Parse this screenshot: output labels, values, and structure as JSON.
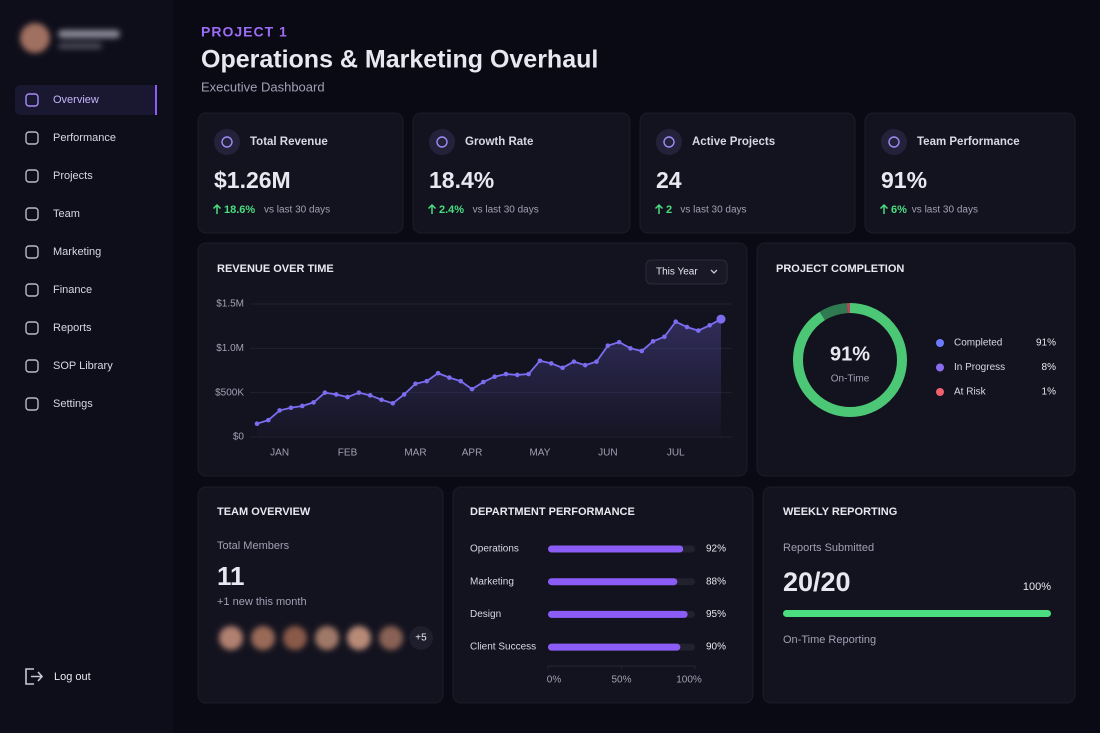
{
  "sidebar": {
    "nav": [
      "Overview",
      "Performance",
      "Projects",
      "Team",
      "Marketing",
      "Finance",
      "Reports",
      "SOP Library",
      "Settings"
    ],
    "active": 0,
    "logout": "Log out"
  },
  "header": {
    "project": "PROJECT 1",
    "title": "Operations & Marketing Overhaul",
    "subtitle": "Executive Dashboard"
  },
  "kpis": [
    {
      "label": "Total Revenue",
      "value": "$1.26M",
      "delta": "18.6%",
      "note": "vs last 30 days"
    },
    {
      "label": "Growth Rate",
      "value": "18.4%",
      "delta": "2.4%",
      "note": "vs last 30 days"
    },
    {
      "label": "Active Projects",
      "value": "24",
      "delta": "2",
      "note": "vs last 30 days"
    },
    {
      "label": "Team Performance",
      "value": "91%",
      "delta": "6%",
      "note": "vs last 30 days"
    }
  ],
  "revenue_chart": {
    "type": "line",
    "title": "REVENUE OVER TIME",
    "filter": "This Year",
    "categories": [
      null,
      null,
      "JAN",
      null,
      null,
      null,
      null,
      null,
      "FEB",
      null,
      null,
      null,
      null,
      null,
      "MAR",
      null,
      null,
      null,
      null,
      "APR",
      null,
      null,
      null,
      null,
      null,
      "MAY",
      null,
      null,
      null,
      null,
      null,
      "JUN",
      null,
      null,
      null,
      null,
      null,
      "JUL",
      null,
      null,
      null,
      null
    ],
    "values": [
      150000,
      190000,
      300000,
      330000,
      350000,
      390000,
      500000,
      480000,
      450000,
      500000,
      470000,
      420000,
      380000,
      480000,
      600000,
      630000,
      720000,
      670000,
      630000,
      540000,
      620000,
      680000,
      710000,
      700000,
      710000,
      860000,
      830000,
      780000,
      850000,
      810000,
      850000,
      1030000,
      1070000,
      1000000,
      970000,
      1080000,
      1130000,
      1300000,
      1240000,
      1200000,
      1260000,
      1330000
    ],
    "color": "#7c6cf0",
    "ylim": [
      0,
      1500000
    ],
    "yticks": [
      {
        "value": 0,
        "label": "$0"
      },
      {
        "value": 500000,
        "label": "$500K"
      },
      {
        "value": 1000000,
        "label": "$1.0M"
      },
      {
        "value": 1500000,
        "label": "$1.5M"
      }
    ],
    "grid": true
  },
  "completion_chart": {
    "type": "donut",
    "title": "PROJECT COMPLETION",
    "center_value": "91%",
    "center_label": "On-Time",
    "categories": [
      "Completed",
      "In Progress",
      "At Risk"
    ],
    "values": [
      91,
      8,
      1
    ],
    "value_labels": [
      "91%",
      "8%",
      "1%"
    ],
    "colors": [
      "#6b7cff",
      "#8b6cf0",
      "#f0606e"
    ],
    "ring_colors": [
      "#4cc776",
      "#2f7a50",
      "#b0485a"
    ]
  },
  "department_chart": {
    "type": "hbar",
    "title": "DEPARTMENT PERFORMANCE",
    "categories": [
      "Operations",
      "Marketing",
      "Design",
      "Client Success"
    ],
    "values": [
      92,
      88,
      95,
      90
    ],
    "value_labels": [
      "92%",
      "88%",
      "95%",
      "90%"
    ],
    "xlim": [
      0,
      100
    ],
    "xticks": [
      {
        "value": 0,
        "label": "0%"
      },
      {
        "value": 50,
        "label": "50%"
      },
      {
        "value": 100,
        "label": "100%"
      }
    ],
    "color": "#8b5cf6"
  },
  "team": {
    "title": "TEAM OVERVIEW",
    "label": "Total Members",
    "count": 11,
    "note": "+1 new this month",
    "more": "+5"
  },
  "weekly": {
    "title": "WEEKLY REPORTING",
    "label": "Reports Submitted",
    "count": "20/20",
    "progress": 100,
    "progress_label": "100%",
    "note": "On-Time Reporting",
    "color": "#4ade80"
  }
}
